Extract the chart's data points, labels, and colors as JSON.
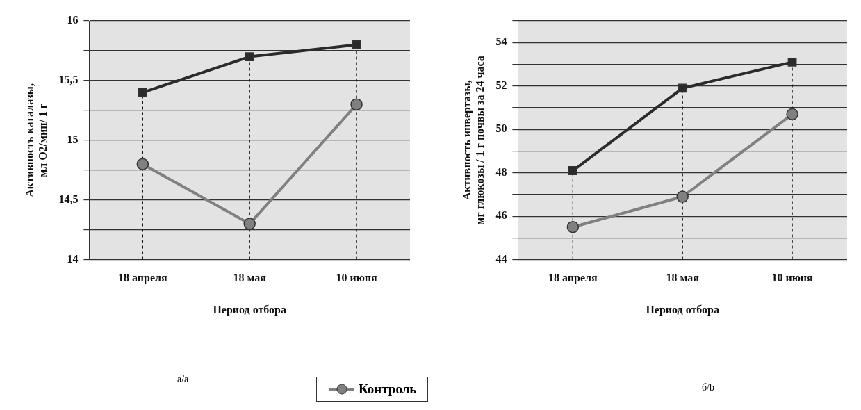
{
  "chart_data": [
    {
      "type": "line",
      "xlabel": "Период отбора",
      "ylabel": "Активность каталазы, мл О2/мин/ 1 г",
      "categories": [
        "18 апреля",
        "18 мая",
        "10 июня"
      ],
      "series": [
        {
          "name": "Контроль",
          "color": "#808080",
          "marker": "circle",
          "values": [
            14.8,
            14.3,
            15.3
          ]
        },
        {
          "color": "#2b2b2b",
          "marker": "square",
          "values": [
            15.4,
            15.7,
            15.8
          ]
        }
      ],
      "ylim": [
        14,
        16
      ],
      "yticks": [
        14,
        {
          "value": 14.25,
          "label": null
        },
        {
          "value": 14.5,
          "label": "14,5"
        },
        {
          "value": 14.75,
          "label": null
        },
        15,
        {
          "value": 15.25,
          "label": null
        },
        {
          "value": 15.5,
          "label": "15,5"
        },
        {
          "value": 15.75,
          "label": null
        },
        16
      ],
      "grid": "y",
      "legend": "bottom",
      "ref_lines": [
        {
          "axis": "x",
          "value": "18 апреля",
          "line_style": "dashed"
        },
        {
          "axis": "x",
          "value": "18 мая",
          "line_style": "dashed"
        },
        {
          "axis": "x",
          "value": "10 июня",
          "line_style": "dashed"
        }
      ],
      "annotations": [
        "а/a"
      ]
    },
    {
      "type": "line",
      "xlabel": "Период отбора",
      "ylabel": "Активность инвертазы, мг глюкозы / 1 г почвы за 24 часа",
      "categories": [
        "18 апреля",
        "18 мая",
        "10 июня"
      ],
      "series": [
        {
          "color": "#808080",
          "marker": "circle",
          "values": [
            45.5,
            46.9,
            50.7
          ]
        },
        {
          "color": "#2b2b2b",
          "marker": "square",
          "values": [
            48.1,
            51.9,
            53.1
          ]
        }
      ],
      "ylim": [
        44,
        55
      ],
      "yticks": [
        44,
        {
          "value": 45,
          "label": null
        },
        46,
        {
          "value": 47,
          "label": null
        },
        48,
        {
          "value": 49,
          "label": null
        },
        50,
        {
          "value": 51,
          "label": null
        },
        52,
        {
          "value": 53,
          "label": null
        },
        54,
        {
          "value": 55,
          "label": null
        }
      ],
      "grid": "y",
      "legend": false,
      "ref_lines": [
        {
          "axis": "x",
          "value": "18 апреля",
          "line_style": "dashed"
        },
        {
          "axis": "x",
          "value": "18 мая",
          "line_style": "dashed"
        },
        {
          "axis": "x",
          "value": "10 июня",
          "line_style": "dashed"
        }
      ],
      "annotations": [
        "б/b"
      ]
    }
  ]
}
